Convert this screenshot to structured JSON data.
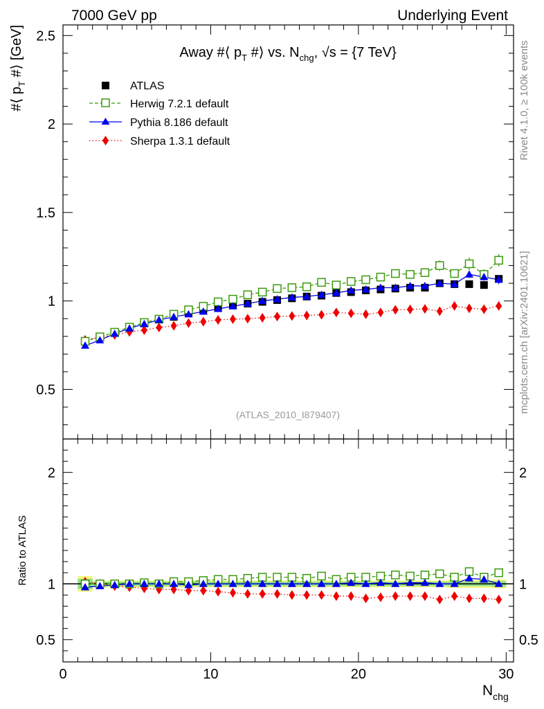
{
  "header": {
    "left": "7000 GeV pp",
    "right": "Underlying Event"
  },
  "side": {
    "rivet": "Rivet 4.1.0, ≥ 100k events",
    "mcplots": "mcplots.cern.ch [arXiv:2401.10621]"
  },
  "colors": {
    "atlas": "#000000",
    "herwig": "#3a9a0a",
    "pythia": "#0000ee",
    "sherpa": "#ee0000",
    "band_inner": "#8fe089",
    "band_outer": "#f4f97a"
  },
  "chart_data": {
    "type": "line",
    "title_parts": {
      "pre": "Away #⟨ p",
      "sub1": "T",
      "mid": " #⟩ vs. N",
      "sub2": "chg",
      "post": ", √s = {7 TeV}"
    },
    "watermark": "(ATLAS_2010_I879407)",
    "xlabel": "N",
    "xlabel_sub": "chg",
    "ylabel_main": {
      "pre": "#⟨ p",
      "sub": "T",
      "post": " #⟩ [GeV]"
    },
    "ylabel_ratio": "Ratio to ATLAS",
    "xlim": [
      0,
      30.5
    ],
    "ylim_main": [
      0.22,
      2.56
    ],
    "ylim_ratio": [
      0.3,
      2.3
    ],
    "xticks": [
      0,
      10,
      20,
      30
    ],
    "xtick_labels": [
      "0",
      "10",
      "20",
      "30"
    ],
    "yticks_main": [
      0.5,
      1,
      1.5,
      2,
      2.5
    ],
    "ytick_labels_main": [
      "0.5",
      "1",
      "1.5",
      "2",
      "2.5"
    ],
    "yticks_ratio": [
      0.5,
      1,
      2
    ],
    "ytick_labels_ratio": [
      "0.5",
      "1",
      "2"
    ],
    "ytick_labels_ratio_right": [
      "0.5",
      "1",
      "2"
    ],
    "x": [
      1.5,
      2.5,
      3.5,
      4.5,
      5.5,
      6.5,
      7.5,
      8.5,
      9.5,
      10.5,
      11.5,
      12.5,
      13.5,
      14.5,
      15.5,
      16.5,
      17.5,
      18.5,
      19.5,
      20.5,
      21.5,
      22.5,
      23.5,
      24.5,
      25.5,
      26.5,
      27.5,
      28.5,
      29.5
    ],
    "series": [
      {
        "name": "ATLAS",
        "label": "ATLAS",
        "values": [
          0.77,
          0.795,
          0.822,
          0.848,
          0.873,
          0.895,
          0.91,
          0.93,
          0.945,
          0.96,
          0.975,
          0.985,
          0.995,
          1.005,
          1.015,
          1.025,
          1.03,
          1.045,
          1.05,
          1.06,
          1.065,
          1.07,
          1.075,
          1.075,
          1.1,
          1.095,
          1.095,
          1.09,
          1.125
        ],
        "ratio": [
          1,
          1,
          1,
          1,
          1,
          1,
          1,
          1,
          1,
          1,
          1,
          1,
          1,
          1,
          1,
          1,
          1,
          1,
          1,
          1,
          1,
          1,
          1,
          1,
          1,
          1,
          1,
          1,
          1
        ],
        "band_outer": [
          0.07,
          0.03,
          0.03,
          0.03,
          0.03,
          0.03,
          0.03,
          0.03,
          0.03,
          0.03,
          0.03,
          0.03,
          0.03,
          0.03,
          0.03,
          0.03,
          0.03,
          0.03,
          0.03,
          0.03,
          0.03,
          0.03,
          0.03,
          0.03,
          0.03,
          0.035,
          0.035,
          0.035,
          0.04
        ],
        "band_inner": [
          0.045,
          0.02,
          0.02,
          0.02,
          0.02,
          0.02,
          0.02,
          0.02,
          0.02,
          0.02,
          0.02,
          0.02,
          0.02,
          0.02,
          0.02,
          0.02,
          0.02,
          0.02,
          0.02,
          0.02,
          0.02,
          0.02,
          0.02,
          0.02,
          0.02,
          0.02,
          0.02,
          0.02,
          0.025
        ]
      },
      {
        "name": "Herwig",
        "label": "Herwig 7.2.1 default",
        "values": [
          0.772,
          0.797,
          0.823,
          0.852,
          0.878,
          0.897,
          0.925,
          0.95,
          0.97,
          0.995,
          1.01,
          1.035,
          1.05,
          1.07,
          1.075,
          1.08,
          1.105,
          1.09,
          1.11,
          1.12,
          1.135,
          1.155,
          1.15,
          1.16,
          1.2,
          1.155,
          1.21,
          1.15,
          1.23
        ],
        "ratio": [
          1.0,
          1.0,
          1.0,
          1.0,
          1.01,
          1.0,
          1.02,
          1.02,
          1.03,
          1.04,
          1.04,
          1.05,
          1.06,
          1.06,
          1.06,
          1.05,
          1.07,
          1.04,
          1.06,
          1.06,
          1.07,
          1.08,
          1.07,
          1.08,
          1.09,
          1.06,
          1.11,
          1.06,
          1.1
        ]
      },
      {
        "name": "Pythia",
        "label": "Pythia 8.186 default",
        "values": [
          0.748,
          0.778,
          0.815,
          0.845,
          0.87,
          0.893,
          0.91,
          0.925,
          0.94,
          0.955,
          0.97,
          0.985,
          1.0,
          1.01,
          1.02,
          1.025,
          1.035,
          1.045,
          1.06,
          1.065,
          1.075,
          1.075,
          1.085,
          1.085,
          1.1,
          1.095,
          1.15,
          1.135,
          1.12
        ],
        "ratio": [
          0.97,
          0.98,
          0.99,
          1.0,
          1.0,
          1.0,
          1.0,
          0.99,
          1.0,
          1.0,
          1.0,
          1.0,
          1.0,
          1.0,
          1.0,
          1.0,
          1.0,
          1.0,
          1.01,
          1.0,
          1.01,
          1.0,
          1.01,
          1.01,
          1.0,
          1.0,
          1.05,
          1.04,
          1.0
        ]
      },
      {
        "name": "Sherpa",
        "label": "Sherpa 1.3.1 default",
        "values": [
          0.78,
          0.795,
          0.808,
          0.825,
          0.835,
          0.85,
          0.86,
          0.875,
          0.883,
          0.893,
          0.897,
          0.9,
          0.905,
          0.912,
          0.915,
          0.918,
          0.922,
          0.935,
          0.93,
          0.925,
          0.935,
          0.95,
          0.952,
          0.955,
          0.942,
          0.972,
          0.958,
          0.953,
          0.972
        ],
        "ratio": [
          1.02,
          1.0,
          0.98,
          0.97,
          0.96,
          0.95,
          0.95,
          0.94,
          0.94,
          0.93,
          0.92,
          0.91,
          0.91,
          0.91,
          0.9,
          0.9,
          0.9,
          0.89,
          0.89,
          0.87,
          0.88,
          0.89,
          0.89,
          0.89,
          0.86,
          0.89,
          0.87,
          0.87,
          0.86
        ]
      }
    ],
    "error_bars": {
      "Herwig": [
        0.01,
        0.01,
        0.01,
        0.01,
        0.01,
        0.01,
        0.01,
        0.01,
        0.01,
        0.01,
        0.01,
        0.01,
        0.01,
        0.01,
        0.012,
        0.012,
        0.012,
        0.012,
        0.014,
        0.014,
        0.015,
        0.016,
        0.016,
        0.018,
        0.03,
        0.02,
        0.035,
        0.03,
        0.035
      ],
      "Pythia": [
        0.005,
        0.005,
        0.005,
        0.005,
        0.005,
        0.005,
        0.005,
        0.005,
        0.005,
        0.006,
        0.006,
        0.006,
        0.006,
        0.007,
        0.007,
        0.008,
        0.008,
        0.008,
        0.009,
        0.01,
        0.01,
        0.01,
        0.012,
        0.012,
        0.012,
        0.015,
        0.02,
        0.02,
        0.025
      ]
    },
    "legend_placement": "top-left"
  }
}
